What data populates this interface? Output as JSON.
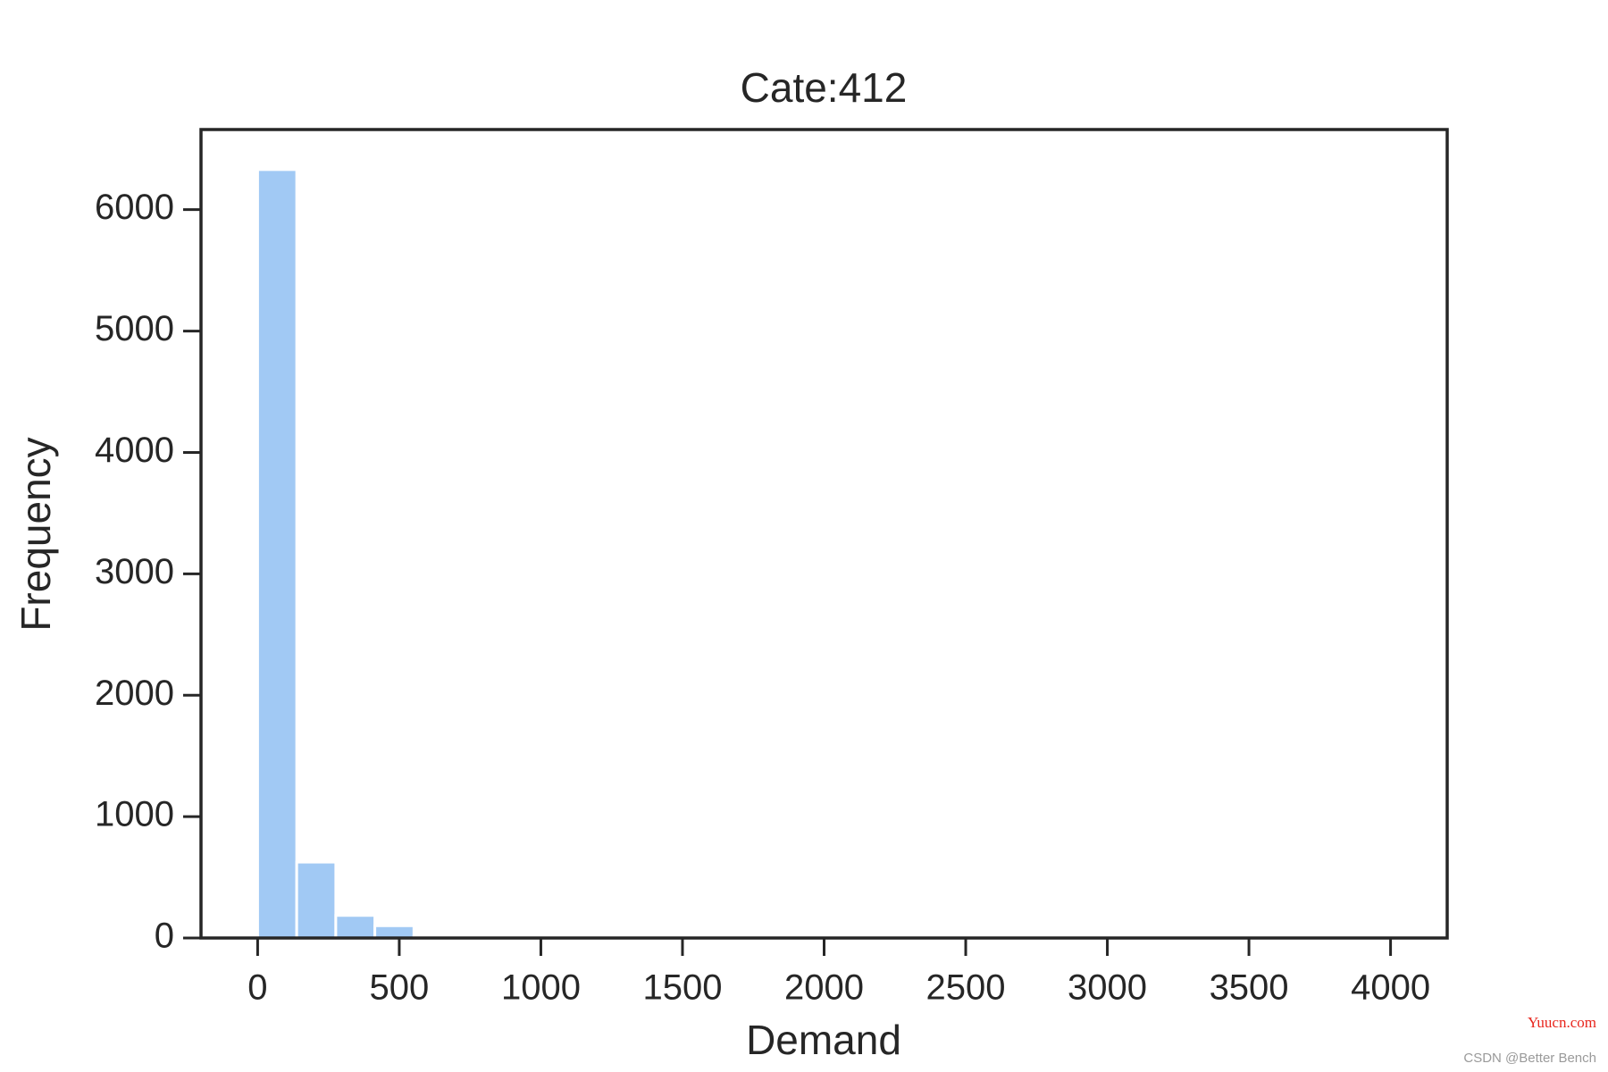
{
  "chart_data": {
    "type": "histogram",
    "title": "Cate:412",
    "xlabel": "Demand",
    "ylabel": "Frequency",
    "bins": [
      0,
      137.9,
      275.9,
      413.8,
      551.7,
      689.7,
      827.6,
      965.5,
      1103.4,
      1241.4,
      1379.3,
      1517.2,
      1655.2,
      1793.1,
      1931.0,
      2069.0,
      2206.9,
      2344.8,
      2482.8,
      2620.7,
      2758.6,
      2896.6,
      3034.5,
      3172.4,
      3310.3,
      3448.3,
      3586.2,
      3724.1,
      3862.1,
      4000
    ],
    "values": [
      6330,
      625,
      186,
      101,
      15,
      6,
      3,
      2,
      1,
      1,
      0,
      0,
      1,
      0,
      0,
      0,
      0,
      0,
      0,
      0,
      0,
      0,
      0,
      0,
      0,
      0,
      0,
      0,
      1
    ],
    "color": "#a1c9f4",
    "xlim": [
      -200,
      4200
    ],
    "xticks": [
      0,
      500,
      1000,
      1500,
      2000,
      2500,
      3000,
      3500,
      4000
    ],
    "ylim": [
      0,
      6660
    ],
    "yticks": [
      0,
      1000,
      2000,
      3000,
      4000,
      5000,
      6000
    ],
    "grid": false
  },
  "watermarks": [
    "Yuucn.com",
    "CSDN @Better Bench"
  ]
}
